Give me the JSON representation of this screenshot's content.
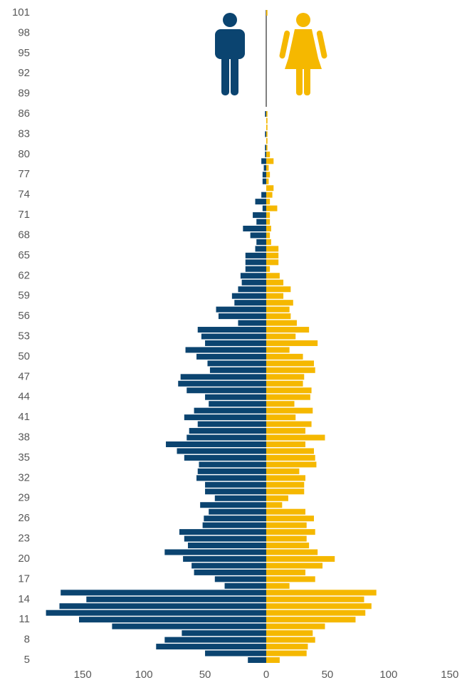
{
  "chart_data": {
    "type": "pyramid",
    "categories": [
      "5",
      null,
      null,
      "8",
      null,
      null,
      "11",
      null,
      null,
      "14",
      null,
      null,
      "17",
      null,
      null,
      "20",
      null,
      null,
      "23",
      null,
      null,
      "26",
      null,
      null,
      "29",
      null,
      null,
      "32",
      null,
      null,
      "35",
      null,
      null,
      "38",
      null,
      null,
      "41",
      null,
      null,
      "44",
      null,
      null,
      "47",
      null,
      null,
      "50",
      null,
      null,
      "53",
      null,
      null,
      "56",
      null,
      null,
      "59",
      null,
      null,
      "62",
      null,
      null,
      "65",
      null,
      null,
      "68",
      null,
      null,
      "71",
      null,
      null,
      "74",
      null,
      null,
      "77",
      null,
      null,
      "80",
      null,
      null,
      "83",
      null,
      null,
      "86",
      null,
      null,
      "89",
      null,
      null,
      "92",
      null,
      null,
      "95",
      null,
      null,
      "98",
      null,
      null,
      "101"
    ],
    "series": [
      {
        "color": "#0b4470",
        "side": "left",
        "values": [
          15,
          50,
          90,
          83,
          69,
          126,
          153,
          180,
          169,
          147,
          168,
          34,
          42,
          59,
          61,
          68,
          83,
          64,
          67,
          71,
          52,
          51,
          47,
          54,
          42,
          50,
          50,
          57,
          56,
          55,
          67,
          73,
          82,
          65,
          63,
          56,
          67,
          59,
          47,
          50,
          65,
          72,
          70,
          46,
          48,
          57,
          66,
          50,
          53,
          56,
          23,
          39,
          41,
          26,
          28,
          23,
          20,
          21,
          17,
          17,
          17,
          9,
          8,
          13,
          19,
          8,
          11,
          3,
          9,
          4,
          0,
          3,
          3,
          2,
          4,
          1,
          1,
          0,
          1,
          0,
          0,
          1,
          0,
          0,
          0,
          0,
          0,
          0,
          0,
          0,
          0,
          0,
          0,
          0,
          0,
          0,
          0
        ]
      },
      {
        "color": "#f5b800",
        "side": "right",
        "values": [
          11,
          33,
          34,
          40,
          38,
          48,
          73,
          81,
          86,
          80,
          90,
          19,
          40,
          32,
          46,
          56,
          42,
          35,
          33,
          40,
          33,
          39,
          32,
          13,
          18,
          31,
          31,
          32,
          27,
          41,
          40,
          39,
          32,
          48,
          32,
          37,
          24,
          38,
          23,
          36,
          37,
          30,
          31,
          40,
          39,
          30,
          19,
          42,
          24,
          35,
          25,
          20,
          19,
          22,
          14,
          20,
          14,
          11,
          3,
          10,
          10,
          10,
          4,
          3,
          4,
          3,
          3,
          9,
          3,
          5,
          6,
          2,
          3,
          2,
          6,
          3,
          1,
          1,
          1,
          1,
          1,
          1,
          0,
          0,
          0,
          0,
          0,
          0,
          0,
          0,
          0,
          0,
          0,
          0,
          0,
          0,
          1
        ]
      }
    ],
    "xlim": [
      -185,
      160
    ],
    "xticks": [
      {
        "value": -150,
        "label": "150"
      },
      {
        "value": -100,
        "label": "100"
      },
      {
        "value": -50,
        "label": "50"
      },
      0,
      50,
      100,
      150
    ]
  }
}
